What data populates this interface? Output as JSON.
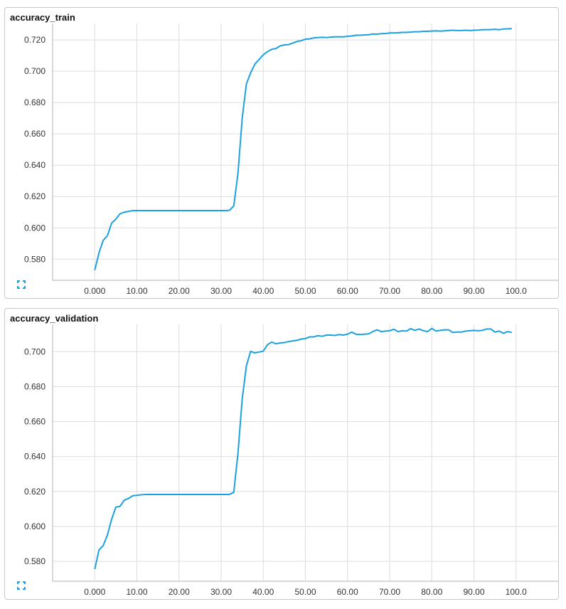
{
  "charts": [
    {
      "id": "train",
      "title": "accuracy_train",
      "chart_data": {
        "type": "line",
        "title": "accuracy_train",
        "xlabel": "",
        "ylabel": "",
        "xlim": [
          -10,
          110
        ],
        "ylim": [
          0.5665,
          0.7305
        ],
        "x_ticks": [
          0,
          10,
          20,
          30,
          40,
          50,
          60,
          70,
          80,
          90,
          100
        ],
        "x_tick_labels": [
          "0.000",
          "10.00",
          "20.00",
          "30.00",
          "40.00",
          "50.00",
          "60.00",
          "70.00",
          "80.00",
          "90.00",
          "100.0"
        ],
        "y_ticks": [
          0.58,
          0.6,
          0.62,
          0.64,
          0.66,
          0.68,
          0.7,
          0.72
        ],
        "y_tick_labels": [
          "0.580",
          "0.600",
          "0.620",
          "0.640",
          "0.660",
          "0.680",
          "0.700",
          "0.720"
        ],
        "grid": true,
        "color": "#1ba1e2",
        "series": [
          {
            "x": [
              0,
              1,
              2,
              3,
              4,
              5,
              6,
              7,
              8,
              9,
              10,
              11,
              12,
              13,
              14,
              15,
              16,
              17,
              18,
              19,
              20,
              21,
              22,
              23,
              24,
              25,
              26,
              27,
              28,
              29,
              30,
              31,
              32,
              33,
              34,
              35,
              36,
              37,
              38,
              39,
              40,
              41,
              42,
              43,
              44,
              45,
              46,
              47,
              48,
              49,
              50,
              51,
              52,
              53,
              54,
              55,
              56,
              57,
              58,
              59,
              60,
              61,
              62,
              63,
              64,
              65,
              66,
              67,
              68,
              69,
              70,
              71,
              72,
              73,
              74,
              75,
              76,
              77,
              78,
              79,
              80,
              81,
              82,
              83,
              84,
              85,
              86,
              87,
              88,
              89,
              90,
              91,
              92,
              93,
              94,
              95,
              96,
              97,
              98,
              99
            ],
            "y": [
              0.573,
              0.584,
              0.592,
              0.595,
              0.603,
              0.6055,
              0.609,
              0.61,
              0.6105,
              0.611,
              0.611,
              0.611,
              0.611,
              0.611,
              0.611,
              0.611,
              0.611,
              0.611,
              0.611,
              0.611,
              0.611,
              0.611,
              0.611,
              0.611,
              0.611,
              0.611,
              0.611,
              0.611,
              0.611,
              0.611,
              0.611,
              0.611,
              0.6112,
              0.614,
              0.635,
              0.67,
              0.692,
              0.699,
              0.7045,
              0.7075,
              0.7105,
              0.7125,
              0.714,
              0.7145,
              0.7162,
              0.7168,
              0.717,
              0.718,
              0.719,
              0.7195,
              0.7205,
              0.7207,
              0.7213,
              0.7215,
              0.7217,
              0.7215,
              0.7218,
              0.722,
              0.722,
              0.722,
              0.7223,
              0.7225,
              0.723,
              0.723,
              0.7232,
              0.7233,
              0.7238,
              0.7237,
              0.724,
              0.724,
              0.7245,
              0.7245,
              0.7246,
              0.7248,
              0.7248,
              0.725,
              0.7252,
              0.7252,
              0.7255,
              0.7255,
              0.7257,
              0.7258,
              0.7256,
              0.7258,
              0.726,
              0.7262,
              0.726,
              0.726,
              0.7262,
              0.726,
              0.7262,
              0.7263,
              0.7265,
              0.7266,
              0.7266,
              0.7268,
              0.7265,
              0.727,
              0.7271,
              0.7272
            ]
          }
        ]
      }
    },
    {
      "id": "val",
      "title": "accuracy_validation",
      "chart_data": {
        "type": "line",
        "title": "accuracy_validation",
        "xlabel": "",
        "ylabel": "",
        "xlim": [
          -10,
          110
        ],
        "ylim": [
          0.5686,
          0.7156
        ],
        "x_ticks": [
          0,
          10,
          20,
          30,
          40,
          50,
          60,
          70,
          80,
          90,
          100
        ],
        "x_tick_labels": [
          "0.000",
          "10.00",
          "20.00",
          "30.00",
          "40.00",
          "50.00",
          "60.00",
          "70.00",
          "80.00",
          "90.00",
          "100.0"
        ],
        "y_ticks": [
          0.58,
          0.6,
          0.62,
          0.64,
          0.66,
          0.68,
          0.7
        ],
        "y_tick_labels": [
          "0.580",
          "0.600",
          "0.620",
          "0.640",
          "0.660",
          "0.680",
          "0.700"
        ],
        "grid": true,
        "color": "#1ba1e2",
        "series": [
          {
            "x": [
              0,
              1,
              2,
              3,
              4,
              5,
              6,
              7,
              8,
              9,
              10,
              11,
              12,
              13,
              14,
              15,
              16,
              17,
              18,
              19,
              20,
              21,
              22,
              23,
              24,
              25,
              26,
              27,
              28,
              29,
              30,
              31,
              32,
              33,
              34,
              35,
              36,
              37,
              38,
              39,
              40,
              41,
              42,
              43,
              44,
              45,
              46,
              47,
              48,
              49,
              50,
              51,
              52,
              53,
              54,
              55,
              56,
              57,
              58,
              59,
              60,
              61,
              62,
              63,
              64,
              65,
              66,
              67,
              68,
              69,
              70,
              71,
              72,
              73,
              74,
              75,
              76,
              77,
              78,
              79,
              80,
              81,
              82,
              83,
              84,
              85,
              86,
              87,
              88,
              89,
              90,
              91,
              92,
              93,
              94,
              95,
              96,
              97,
              98,
              99
            ],
            "y": [
              0.5755,
              0.5865,
              0.589,
              0.595,
              0.604,
              0.611,
              0.6115,
              0.615,
              0.616,
              0.6175,
              0.6178,
              0.6181,
              0.6183,
              0.6183,
              0.6183,
              0.6183,
              0.6183,
              0.6183,
              0.6183,
              0.6183,
              0.6183,
              0.6183,
              0.6183,
              0.6183,
              0.6183,
              0.6183,
              0.6183,
              0.6183,
              0.6183,
              0.6183,
              0.6183,
              0.6183,
              0.6183,
              0.6195,
              0.642,
              0.673,
              0.692,
              0.7002,
              0.6993,
              0.6998,
              0.7003,
              0.704,
              0.7055,
              0.7045,
              0.705,
              0.7052,
              0.7058,
              0.7062,
              0.7065,
              0.7072,
              0.7075,
              0.7085,
              0.7085,
              0.7092,
              0.7088,
              0.7095,
              0.7095,
              0.7093,
              0.7098,
              0.7095,
              0.71,
              0.7112,
              0.71,
              0.7098,
              0.71,
              0.7102,
              0.7115,
              0.7125,
              0.7115,
              0.7118,
              0.712,
              0.7128,
              0.7115,
              0.712,
              0.7118,
              0.7132,
              0.7122,
              0.713,
              0.712,
              0.7115,
              0.7133,
              0.7118,
              0.7122,
              0.7125,
              0.7125,
              0.711,
              0.7112,
              0.7112,
              0.7118,
              0.712,
              0.7122,
              0.712,
              0.7122,
              0.713,
              0.713,
              0.7112,
              0.7118,
              0.7105,
              0.7115,
              0.711
            ]
          }
        ]
      }
    }
  ]
}
